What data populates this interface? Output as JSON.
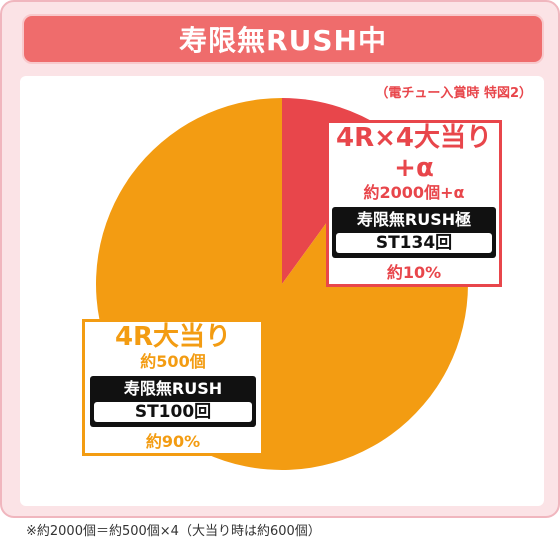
{
  "header": {
    "title": "寿限無RUSH中"
  },
  "note_top": "（電チュー入賞時 特図2）",
  "chart_data": {
    "type": "pie",
    "title": "寿限無RUSH中",
    "slices": [
      {
        "label": "4R×4大当り+α",
        "sub": "約2000個+α",
        "mode": "寿限無RUSH極",
        "st": "ST134回",
        "percent_label": "約10%",
        "value": 10,
        "color": "#e8464b"
      },
      {
        "label": "4R大当り",
        "sub": "約500個",
        "mode": "寿限無RUSH",
        "st": "ST100回",
        "percent_label": "約90%",
        "value": 90,
        "color": "#f39c12"
      }
    ]
  },
  "footnote": "※約2000個＝約500個×4（大当り時は約600個）"
}
